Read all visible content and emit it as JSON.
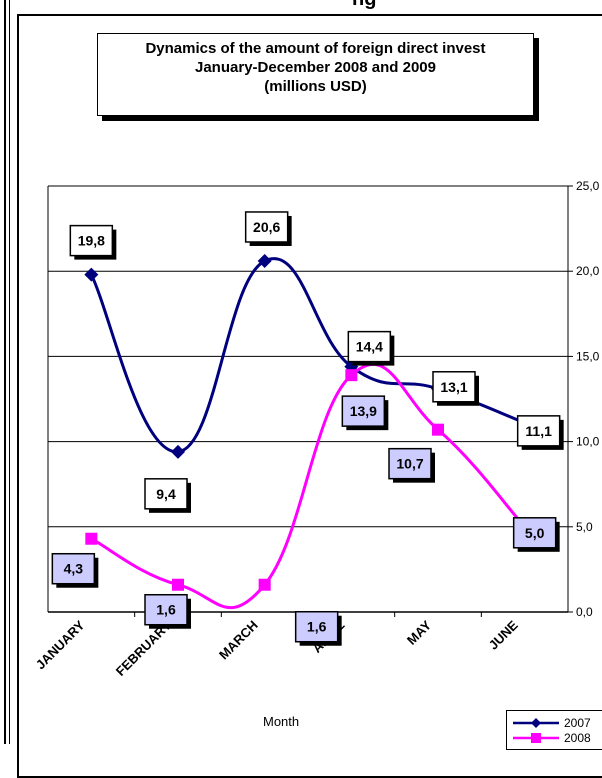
{
  "header_fragment": "ng",
  "title_lines": [
    "Dynamics of the amount of foreign direct invest",
    "January-December 2008 and  2009",
    "(millions USD)"
  ],
  "chart_data": {
    "type": "line",
    "title": "Dynamics of the amount of foreign direct invest January-December 2008 and  2009 (millions USD)",
    "xlabel": "Month",
    "ylabel": "",
    "categories": [
      "JANUARY",
      "FEBRUARY",
      "MARCH",
      "APRIL",
      "MAY",
      "JUNE"
    ],
    "ylim": [
      0,
      25
    ],
    "yticks": [
      "0,0",
      "5,0",
      "10,0",
      "15,0",
      "20,0",
      "25,0"
    ],
    "grid": true,
    "legend_position": "bottom-right",
    "series": [
      {
        "name": "2007",
        "color": "#00007f",
        "marker": "diamond",
        "values": [
          19.8,
          9.4,
          20.6,
          14.4,
          13.1,
          11.1
        ],
        "labels": [
          "19,8",
          "9,4",
          "20,6",
          "14,4",
          "13,1",
          "11,1"
        ]
      },
      {
        "name": "2008",
        "color": "#ff00ff",
        "marker": "square",
        "values": [
          4.3,
          1.6,
          1.6,
          13.9,
          10.7,
          5.0
        ],
        "labels": [
          "4,3",
          "1,6",
          "1,6",
          "13,9",
          "10,7",
          "5,0"
        ]
      }
    ]
  },
  "label_styles": {
    "2007": {
      "fill": "#ffffff",
      "shadow": "#000000"
    },
    "2008": {
      "fill": "#ccccff",
      "shadow": "#000000"
    }
  }
}
